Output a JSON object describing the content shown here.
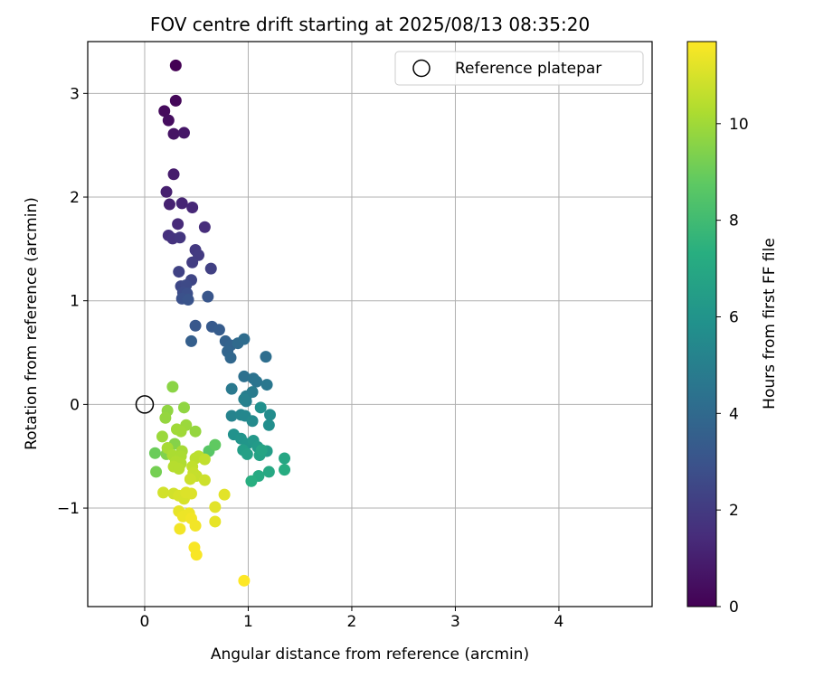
{
  "chart_data": {
    "type": "scatter",
    "title": "FOV centre drift starting at 2025/08/13 08:35:20",
    "xlabel": "Angular distance from reference (arcmin)",
    "ylabel": "Rotation from reference (arcmin)",
    "xlim": [
      -0.55,
      4.9
    ],
    "ylim": [
      -1.95,
      3.5
    ],
    "xticks": [
      0,
      1,
      2,
      3,
      4
    ],
    "xtick_labels": [
      "0",
      "1",
      "2",
      "3",
      "4"
    ],
    "yticks": [
      -1,
      0,
      1,
      2,
      3
    ],
    "ytick_labels": [
      "−1",
      "0",
      "1",
      "2",
      "3"
    ],
    "grid": true,
    "legend": {
      "position": "top-right",
      "entries": [
        "Reference platepar"
      ]
    },
    "reference_point": {
      "label": "Reference platepar",
      "x": 0,
      "y": 0
    },
    "colorbar": {
      "label": "Hours from first FF file",
      "range": [
        0,
        11.7
      ],
      "ticks": [
        0,
        2,
        4,
        6,
        8,
        10
      ],
      "tick_labels": [
        "0",
        "2",
        "4",
        "6",
        "8",
        "10"
      ],
      "colormap": "viridis"
    },
    "series": [
      {
        "columns": [
          "x",
          "y",
          "hours"
        ],
        "points": [
          [
            0.3,
            3.27,
            0.0
          ],
          [
            0.3,
            2.93,
            0.2
          ],
          [
            0.19,
            2.83,
            0.3
          ],
          [
            0.23,
            2.74,
            0.4
          ],
          [
            0.28,
            2.61,
            0.6
          ],
          [
            0.38,
            2.62,
            0.7
          ],
          [
            0.28,
            2.22,
            0.9
          ],
          [
            0.21,
            2.05,
            1.0
          ],
          [
            0.24,
            1.93,
            1.1
          ],
          [
            0.36,
            1.94,
            1.2
          ],
          [
            0.46,
            1.9,
            1.3
          ],
          [
            0.32,
            1.74,
            1.4
          ],
          [
            0.58,
            1.71,
            1.5
          ],
          [
            0.23,
            1.63,
            1.6
          ],
          [
            0.27,
            1.6,
            1.7
          ],
          [
            0.34,
            1.61,
            1.8
          ],
          [
            0.49,
            1.49,
            1.9
          ],
          [
            0.52,
            1.44,
            2.0
          ],
          [
            0.46,
            1.37,
            2.1
          ],
          [
            0.64,
            1.31,
            2.2
          ],
          [
            0.33,
            1.28,
            2.3
          ],
          [
            0.45,
            1.2,
            2.4
          ],
          [
            0.35,
            1.14,
            2.5
          ],
          [
            0.4,
            1.15,
            2.6
          ],
          [
            0.37,
            1.08,
            2.7
          ],
          [
            0.41,
            1.07,
            2.8
          ],
          [
            0.36,
            1.02,
            2.9
          ],
          [
            0.42,
            1.01,
            3.0
          ],
          [
            0.61,
            1.04,
            3.1
          ],
          [
            0.49,
            0.76,
            3.2
          ],
          [
            0.65,
            0.75,
            3.3
          ],
          [
            0.72,
            0.72,
            3.4
          ],
          [
            0.45,
            0.61,
            3.5
          ],
          [
            0.78,
            0.61,
            3.6
          ],
          [
            0.83,
            0.57,
            3.7
          ],
          [
            0.8,
            0.51,
            3.8
          ],
          [
            0.83,
            0.45,
            3.9
          ],
          [
            0.9,
            0.59,
            4.0
          ],
          [
            0.96,
            0.63,
            4.1
          ],
          [
            1.17,
            0.46,
            4.2
          ],
          [
            0.96,
            0.27,
            4.3
          ],
          [
            1.05,
            0.25,
            4.4
          ],
          [
            1.08,
            0.22,
            4.5
          ],
          [
            1.18,
            0.19,
            4.6
          ],
          [
            0.84,
            0.15,
            4.7
          ],
          [
            1.04,
            0.12,
            4.8
          ],
          [
            0.98,
            0.08,
            4.9
          ],
          [
            0.98,
            0.03,
            5.0
          ],
          [
            0.96,
            0.05,
            5.1
          ],
          [
            0.84,
            -0.11,
            5.2
          ],
          [
            0.93,
            -0.1,
            5.3
          ],
          [
            0.97,
            -0.11,
            5.4
          ],
          [
            1.04,
            -0.16,
            5.5
          ],
          [
            1.21,
            -0.1,
            5.6
          ],
          [
            1.2,
            -0.2,
            5.7
          ],
          [
            1.12,
            -0.03,
            5.8
          ],
          [
            0.86,
            -0.29,
            5.9
          ],
          [
            0.93,
            -0.33,
            6.0
          ],
          [
            0.99,
            -0.38,
            6.1
          ],
          [
            1.05,
            -0.35,
            6.2
          ],
          [
            1.09,
            -0.41,
            6.3
          ],
          [
            1.18,
            -0.45,
            6.4
          ],
          [
            0.95,
            -0.44,
            6.5
          ],
          [
            0.99,
            -0.48,
            6.6
          ],
          [
            1.11,
            -0.49,
            6.7
          ],
          [
            1.13,
            -0.44,
            6.8
          ],
          [
            1.35,
            -0.52,
            6.9
          ],
          [
            1.2,
            -0.65,
            7.0
          ],
          [
            1.1,
            -0.69,
            7.1
          ],
          [
            1.35,
            -0.63,
            7.2
          ],
          [
            1.03,
            -0.74,
            7.3
          ],
          [
            0.62,
            -0.45,
            8.6
          ],
          [
            0.68,
            -0.39,
            8.8
          ],
          [
            0.1,
            -0.47,
            9.0
          ],
          [
            0.11,
            -0.65,
            9.2
          ],
          [
            0.21,
            -0.48,
            9.4
          ],
          [
            0.29,
            -0.38,
            9.5
          ],
          [
            0.27,
            0.17,
            9.6
          ],
          [
            0.38,
            -0.03,
            9.7
          ],
          [
            0.22,
            -0.06,
            9.7
          ],
          [
            0.2,
            -0.13,
            9.8
          ],
          [
            0.49,
            -0.26,
            9.8
          ],
          [
            0.17,
            -0.31,
            9.9
          ],
          [
            0.4,
            -0.2,
            9.9
          ],
          [
            0.31,
            -0.24,
            10.0
          ],
          [
            0.35,
            -0.26,
            10.0
          ],
          [
            0.22,
            -0.42,
            10.1
          ],
          [
            0.36,
            -0.45,
            10.1
          ],
          [
            0.27,
            -0.49,
            10.2
          ],
          [
            0.35,
            -0.5,
            10.2
          ],
          [
            0.3,
            -0.55,
            10.3
          ],
          [
            0.35,
            -0.57,
            10.3
          ],
          [
            0.28,
            -0.6,
            10.4
          ],
          [
            0.33,
            -0.62,
            10.4
          ],
          [
            0.49,
            -0.52,
            10.5
          ],
          [
            0.52,
            -0.5,
            10.5
          ],
          [
            0.58,
            -0.53,
            10.6
          ],
          [
            0.46,
            -0.6,
            10.6
          ],
          [
            0.47,
            -0.66,
            10.7
          ],
          [
            0.5,
            -0.69,
            10.7
          ],
          [
            0.58,
            -0.73,
            10.8
          ],
          [
            0.44,
            -0.72,
            10.8
          ],
          [
            0.18,
            -0.85,
            10.9
          ],
          [
            0.28,
            -0.86,
            10.9
          ],
          [
            0.33,
            -0.88,
            11.0
          ],
          [
            0.38,
            -0.91,
            11.0
          ],
          [
            0.45,
            -0.86,
            11.1
          ],
          [
            0.4,
            -0.85,
            11.1
          ],
          [
            0.77,
            -0.87,
            11.2
          ],
          [
            0.68,
            -0.99,
            11.2
          ],
          [
            0.68,
            -1.13,
            11.3
          ],
          [
            0.33,
            -1.03,
            11.3
          ],
          [
            0.37,
            -1.08,
            11.4
          ],
          [
            0.43,
            -1.05,
            11.4
          ],
          [
            0.45,
            -1.1,
            11.5
          ],
          [
            0.49,
            -1.17,
            11.5
          ],
          [
            0.34,
            -1.2,
            11.5
          ],
          [
            0.48,
            -1.38,
            11.6
          ],
          [
            0.5,
            -1.45,
            11.6
          ],
          [
            0.96,
            -1.7,
            11.7
          ]
        ]
      }
    ]
  }
}
